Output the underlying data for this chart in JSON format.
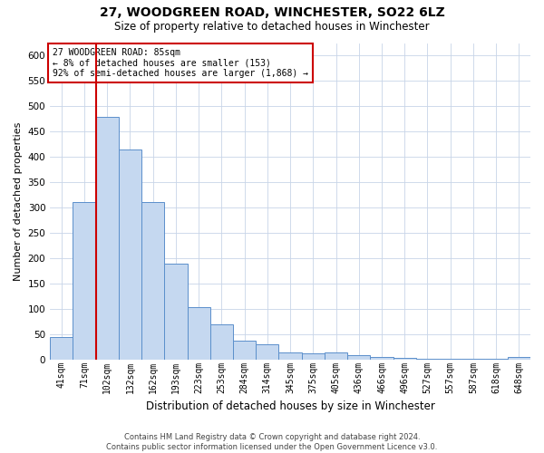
{
  "title": "27, WOODGREEN ROAD, WINCHESTER, SO22 6LZ",
  "subtitle": "Size of property relative to detached houses in Winchester",
  "xlabel": "Distribution of detached houses by size in Winchester",
  "ylabel": "Number of detached properties",
  "footer_line1": "Contains HM Land Registry data © Crown copyright and database right 2024.",
  "footer_line2": "Contains public sector information licensed under the Open Government Licence v3.0.",
  "categories": [
    "41sqm",
    "71sqm",
    "102sqm",
    "132sqm",
    "162sqm",
    "193sqm",
    "223sqm",
    "253sqm",
    "284sqm",
    "314sqm",
    "345sqm",
    "375sqm",
    "405sqm",
    "436sqm",
    "466sqm",
    "496sqm",
    "527sqm",
    "557sqm",
    "587sqm",
    "618sqm",
    "648sqm"
  ],
  "values": [
    45,
    312,
    480,
    415,
    312,
    190,
    103,
    70,
    38,
    30,
    15,
    13,
    15,
    9,
    5,
    4,
    2,
    2,
    2,
    2,
    5
  ],
  "bar_color": "#c5d8f0",
  "bar_edge_color": "#5b8fcb",
  "ylim": [
    0,
    625
  ],
  "yticks": [
    0,
    50,
    100,
    150,
    200,
    250,
    300,
    350,
    400,
    450,
    500,
    550,
    600
  ],
  "vline_x": 1.5,
  "vline_color": "#cc0000",
  "annotation_text": "27 WOODGREEN ROAD: 85sqm\n← 8% of detached houses are smaller (153)\n92% of semi-detached houses are larger (1,868) →",
  "annotation_box_color": "#cc0000",
  "bg_color": "#ffffff",
  "grid_color": "#c8d4e8",
  "title_fontsize": 10,
  "subtitle_fontsize": 8.5,
  "xlabel_fontsize": 8.5,
  "ylabel_fontsize": 8,
  "footer_fontsize": 6,
  "annot_fontsize": 7
}
